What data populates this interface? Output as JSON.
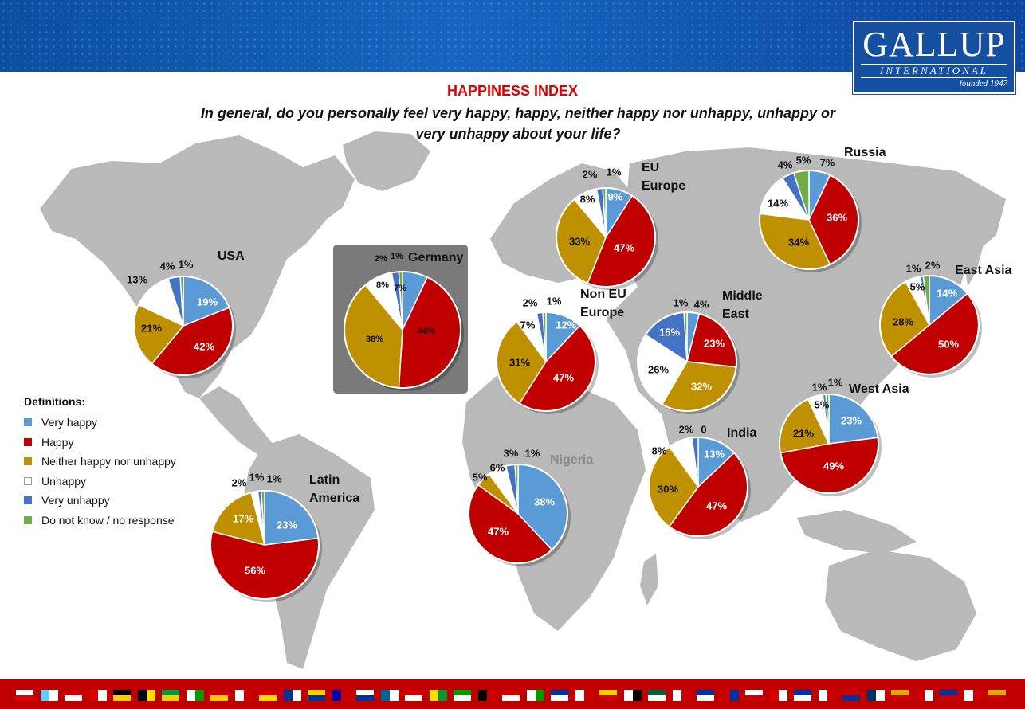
{
  "title": "HAPPINESS INDEX",
  "question": "In general, do you personally feel very happy, happy, neither happy nor unhappy, unhappy or very unhappy about your life?",
  "logo": {
    "name": "GALLUP",
    "sub": "INTERNATIONAL",
    "founded": "founded 1947"
  },
  "legend": {
    "title": "Definitions:",
    "items": [
      {
        "label": "Very happy",
        "color": "#5b9bd5"
      },
      {
        "label": "Happy",
        "color": "#c00000"
      },
      {
        "label": "Neither happy nor unhappy",
        "color": "#bf9000"
      },
      {
        "label": "Unhappy",
        "color": "#ffffff"
      },
      {
        "label": "Very unhappy",
        "color": "#4472c4"
      },
      {
        "label": "Do not know / no response",
        "color": "#70ad47"
      }
    ]
  },
  "chart_data": [
    {
      "type": "pie",
      "region": "USA",
      "categories": [
        "Very happy",
        "Happy",
        "Neither happy nor unhappy",
        "Unhappy",
        "Very unhappy",
        "Do not know / no response"
      ],
      "values": [
        19,
        42,
        21,
        13,
        4,
        1
      ],
      "labels": [
        "19%",
        "42%",
        "21%",
        "13%",
        "4%",
        "1%"
      ]
    },
    {
      "type": "pie",
      "region": "Germany",
      "categories": [
        "Very happy",
        "Happy",
        "Neither happy nor unhappy",
        "Unhappy",
        "Very unhappy",
        "Do not know / no response"
      ],
      "values": [
        7,
        44,
        38,
        8,
        2,
        1
      ],
      "labels": [
        "7%",
        "44%",
        "38%",
        "8%",
        "2%",
        "1%"
      ]
    },
    {
      "type": "pie",
      "region": "EU Europe",
      "categories": [
        "Very happy",
        "Happy",
        "Neither happy nor unhappy",
        "Unhappy",
        "Very unhappy",
        "Do not know / no response"
      ],
      "values": [
        9,
        47,
        33,
        8,
        2,
        1
      ],
      "labels": [
        "9%",
        "47%",
        "33%",
        "8%",
        "2%",
        "1%"
      ]
    },
    {
      "type": "pie",
      "region": "Russia",
      "categories": [
        "Very happy",
        "Happy",
        "Neither happy nor unhappy",
        "Unhappy",
        "Very unhappy",
        "Do not know / no response"
      ],
      "values": [
        7,
        36,
        34,
        14,
        4,
        5
      ],
      "labels": [
        "7%",
        "36%",
        "34%",
        "14%",
        "4%",
        "5%"
      ]
    },
    {
      "type": "pie",
      "region": "East Asia",
      "categories": [
        "Very happy",
        "Happy",
        "Neither happy nor unhappy",
        "Unhappy",
        "Very unhappy",
        "Do not know / no response"
      ],
      "values": [
        14,
        50,
        28,
        5,
        1,
        2
      ],
      "labels": [
        "14%",
        "50%",
        "28%",
        "5%",
        "1%",
        "2%"
      ]
    },
    {
      "type": "pie",
      "region": "Non EU Europe",
      "categories": [
        "Very happy",
        "Happy",
        "Neither happy nor unhappy",
        "Unhappy",
        "Very unhappy",
        "Do not know / no response"
      ],
      "values": [
        12,
        47,
        31,
        7,
        2,
        1
      ],
      "labels": [
        "12%",
        "47%",
        "31%",
        "7%",
        "2%",
        "1%"
      ]
    },
    {
      "type": "pie",
      "region": "Middle East",
      "categories": [
        "Very happy",
        "Happy",
        "Neither happy nor unhappy",
        "Unhappy",
        "Very unhappy",
        "Do not know / no response"
      ],
      "values": [
        4,
        23,
        32,
        26,
        15,
        1
      ],
      "labels": [
        "4%",
        "23%",
        "32%",
        "26%",
        "15%",
        "1%"
      ]
    },
    {
      "type": "pie",
      "region": "West Asia",
      "categories": [
        "Very happy",
        "Happy",
        "Neither happy nor unhappy",
        "Unhappy",
        "Very unhappy",
        "Do not know / no response"
      ],
      "values": [
        23,
        49,
        21,
        5,
        1,
        1
      ],
      "labels": [
        "23%",
        "49%",
        "21%",
        "5%",
        "1%",
        "1%"
      ]
    },
    {
      "type": "pie",
      "region": "India",
      "categories": [
        "Very happy",
        "Happy",
        "Neither happy nor unhappy",
        "Unhappy",
        "Very unhappy",
        "Do not know / no response"
      ],
      "values": [
        13,
        47,
        30,
        8,
        2,
        0
      ],
      "labels": [
        "13%",
        "47%",
        "30%",
        "8%",
        "2%",
        "0"
      ]
    },
    {
      "type": "pie",
      "region": "Nigeria",
      "categories": [
        "Very happy",
        "Happy",
        "Neither happy nor unhappy",
        "Unhappy",
        "Very unhappy",
        "Do not know / no response"
      ],
      "values": [
        38,
        47,
        5,
        6,
        3,
        1
      ],
      "labels": [
        "38%",
        "47%",
        "5%",
        "6%",
        "3%",
        "1%"
      ]
    },
    {
      "type": "pie",
      "region": "Latin America",
      "categories": [
        "Very happy",
        "Happy",
        "Neither happy nor unhappy",
        "Unhappy",
        "Very unhappy",
        "Do not know / no response"
      ],
      "values": [
        23,
        56,
        17,
        2,
        1,
        1
      ],
      "labels": [
        "23%",
        "56%",
        "17%",
        "2%",
        "1%",
        "1%"
      ]
    }
  ]
}
